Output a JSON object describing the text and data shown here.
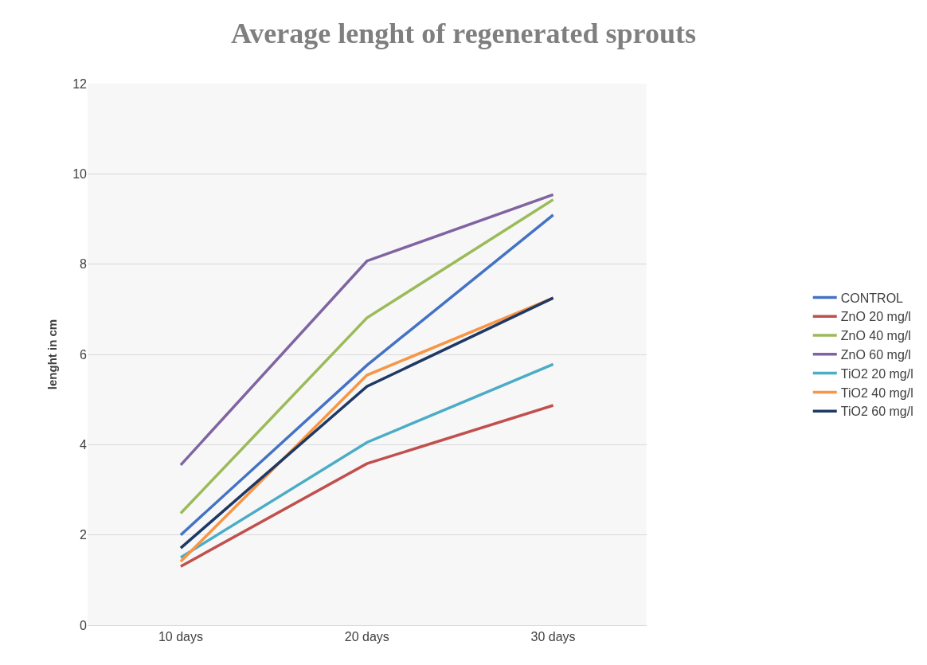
{
  "chart_data": {
    "type": "line",
    "title": "Average lenght of regenerated sprouts",
    "ylabel": "lenght in cm",
    "categories": [
      "10 days",
      "20 days",
      "30 days"
    ],
    "series": [
      {
        "name": "CONTROL",
        "color": "#4472c4",
        "values": [
          2.0,
          5.76,
          9.09
        ]
      },
      {
        "name": "ZnO 20 mg/l",
        "color": "#c0504d",
        "values": [
          1.3,
          3.58,
          4.87
        ]
      },
      {
        "name": "ZnO 40 mg/l",
        "color": "#9bbb59",
        "values": [
          2.48,
          6.81,
          9.43
        ]
      },
      {
        "name": "ZnO 60 mg/l",
        "color": "#8064a2",
        "values": [
          3.55,
          8.07,
          9.54
        ]
      },
      {
        "name": "TiO2 20 mg/l",
        "color": "#4bacc6",
        "values": [
          1.5,
          4.05,
          5.78
        ]
      },
      {
        "name": "TiO2 40 mg/l",
        "color": "#f79646",
        "values": [
          1.41,
          5.54,
          7.25
        ]
      },
      {
        "name": "TiO2 60 mg/l",
        "color": "#1f3864",
        "values": [
          1.71,
          5.29,
          7.25
        ]
      }
    ],
    "ylim": [
      0,
      12
    ],
    "yticks": [
      0,
      2,
      4,
      6,
      8,
      10,
      12
    ],
    "grid": "y",
    "legend": "right",
    "marker": "none",
    "line_style": "solid"
  }
}
